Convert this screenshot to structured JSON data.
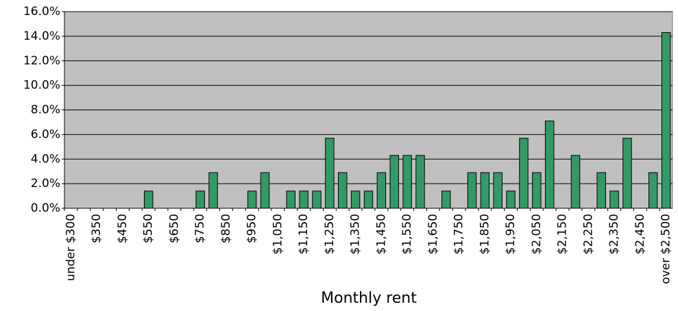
{
  "chart_data": {
    "type": "bar",
    "x_label": "Monthly rent",
    "categories": [
      "under $300",
      null,
      "$350",
      null,
      "$450",
      null,
      "$550",
      null,
      "$650",
      null,
      "$750",
      null,
      "$850",
      null,
      "$950",
      null,
      "$1,050",
      null,
      "$1,150",
      null,
      "$1,250",
      null,
      "$1,350",
      null,
      "$1,450",
      null,
      "$1,550",
      null,
      "$1,650",
      null,
      "$1,750",
      null,
      "$1,850",
      null,
      "$1,950",
      null,
      "$2,050",
      null,
      "$2,150",
      null,
      "$2,250",
      null,
      "$2,350",
      null,
      "$2,450",
      null,
      "over $2,500"
    ],
    "values": [
      0,
      0,
      0,
      0,
      0,
      0,
      1.4,
      0,
      0,
      0,
      1.4,
      2.9,
      0,
      0,
      1.4,
      2.9,
      0,
      1.4,
      1.4,
      1.4,
      5.7,
      2.9,
      1.4,
      1.4,
      2.9,
      4.3,
      4.3,
      4.3,
      0,
      1.4,
      0,
      2.9,
      2.9,
      2.9,
      1.4,
      5.7,
      2.9,
      7.1,
      0,
      4.3,
      0,
      2.9,
      1.4,
      5.7,
      0,
      2.9,
      14.3
    ],
    "color": "#339966",
    "ylim": [
      0,
      16
    ],
    "yticks": [
      {
        "value": 0,
        "label": "0.0%"
      },
      {
        "value": 2,
        "label": "2.0%"
      },
      {
        "value": 4,
        "label": "4.0%"
      },
      {
        "value": 6,
        "label": "6.0%"
      },
      {
        "value": 8,
        "label": "8.0%"
      },
      {
        "value": 10,
        "label": "10.0%"
      },
      {
        "value": 12,
        "label": "12.0%"
      },
      {
        "value": 14,
        "label": "14.0%"
      },
      {
        "value": 16,
        "label": "16.0%"
      }
    ],
    "grid": true
  }
}
